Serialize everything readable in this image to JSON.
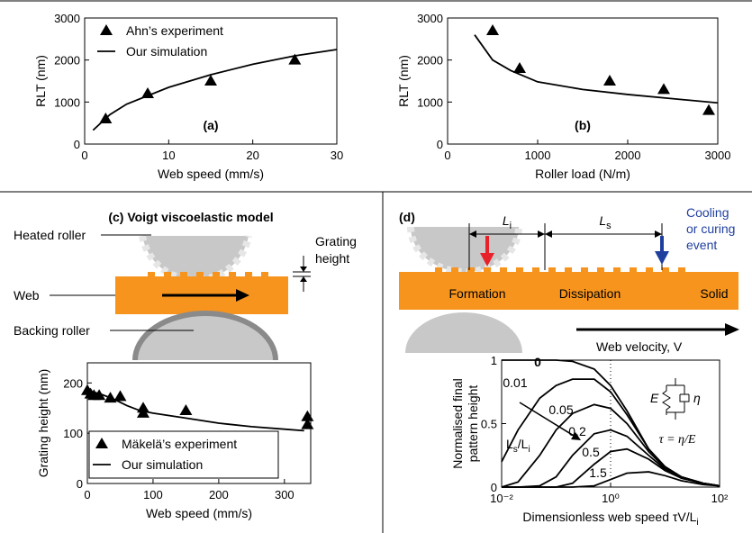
{
  "chart_data": [
    {
      "type": "line",
      "annotation": "(a)",
      "xlabel": "Web speed (mm/s)",
      "ylabel": "RLT (nm)",
      "xlim": [
        0,
        30
      ],
      "xticks": [
        0,
        10,
        20,
        30
      ],
      "ylim": [
        0,
        3000
      ],
      "yticks": [
        0,
        1000,
        2000,
        3000
      ],
      "legend": "upper left",
      "series": [
        {
          "name": "Ahn’s experiment",
          "color": "#000000",
          "marker": "triangle",
          "x": [
            2.5,
            7.5,
            15,
            25
          ],
          "values": [
            600,
            1200,
            1500,
            2000
          ]
        },
        {
          "name": "Our simulation",
          "color": "#000000",
          "marker": "none",
          "x": [
            1,
            3,
            5,
            10,
            15,
            20,
            25,
            30
          ],
          "values": [
            330,
            700,
            950,
            1350,
            1650,
            1900,
            2100,
            2250
          ]
        }
      ]
    },
    {
      "type": "line",
      "annotation": "(b)",
      "xlabel": "Roller load (N/m)",
      "ylabel": "RLT (nm)",
      "xlim": [
        0,
        3000
      ],
      "xticks": [
        0,
        1000,
        2000,
        3000
      ],
      "ylim": [
        0,
        3000
      ],
      "yticks": [
        0,
        1000,
        2000,
        3000
      ],
      "series": [
        {
          "color": "#000000",
          "marker": "triangle",
          "x": [
            500,
            800,
            1800,
            2400,
            2900
          ],
          "values": [
            2700,
            1800,
            1500,
            1300,
            800
          ]
        },
        {
          "color": "#000000",
          "marker": "none",
          "x": [
            300,
            500,
            700,
            1000,
            1500,
            2000,
            2500,
            3000
          ],
          "values": [
            2600,
            2000,
            1750,
            1480,
            1300,
            1180,
            1080,
            980
          ]
        }
      ]
    },
    {
      "type": "line",
      "xlabel": "Web speed (mm/s)",
      "ylabel": "Grating height (nm)",
      "xlim": [
        0,
        340
      ],
      "xticks": [
        0,
        100,
        200,
        300
      ],
      "ylim": [
        0,
        240
      ],
      "yticks": [
        0,
        100,
        200
      ],
      "legend": "lower left",
      "series": [
        {
          "name": "Mäkelä’s experiment",
          "color": "#000000",
          "marker": "triangle",
          "x": [
            0,
            5,
            10,
            18,
            35,
            50,
            85,
            85,
            150,
            335,
            335
          ],
          "values": [
            185,
            178,
            175,
            175,
            170,
            173,
            150,
            140,
            145,
            133,
            117
          ]
        },
        {
          "name": "Our simulation",
          "color": "#000000",
          "marker": "none",
          "x": [
            0,
            20,
            40,
            60,
            80,
            100,
            150,
            200,
            250,
            300,
            330
          ],
          "values": [
            185,
            178,
            168,
            155,
            145,
            140,
            130,
            120,
            113,
            108,
            105
          ]
        }
      ]
    },
    {
      "type": "line",
      "xscale": "log",
      "xlabel": [
        "Dimensionless web speed τV/L",
        "i"
      ],
      "ylabel": [
        "Normalised final",
        "pattern height"
      ],
      "xlim": [
        0.01,
        100
      ],
      "xticks": [
        {
          "value": 0.01,
          "label": "10⁻²"
        },
        {
          "value": 1,
          "label": "10⁰"
        },
        {
          "value": 100,
          "label": "10²"
        }
      ],
      "ylim": [
        0,
        1
      ],
      "yticks": [
        0,
        0.5,
        1
      ],
      "reference_x": 1,
      "ratio_label": [
        "L",
        "s",
        "/L",
        "i"
      ],
      "inset": {
        "spring": "E",
        "damper": "η",
        "relation": "τ = η/E"
      },
      "x": [
        0.01,
        0.02,
        0.05,
        0.1,
        0.2,
        0.5,
        1,
        2,
        5,
        10,
        20,
        50,
        100
      ],
      "series": [
        {
          "name": "0",
          "color": "#000000",
          "values": [
            1,
            1,
            1,
            1,
            0.99,
            0.93,
            0.8,
            0.6,
            0.3,
            0.16,
            0.08,
            0.03,
            0.01
          ]
        },
        {
          "name": "0.01",
          "color": "#000000",
          "values": [
            0.2,
            0.45,
            0.7,
            0.8,
            0.85,
            0.85,
            0.75,
            0.57,
            0.3,
            0.16,
            0.08,
            0.03,
            0.01
          ]
        },
        {
          "name": "0.05",
          "color": "#000000",
          "values": [
            0,
            0.04,
            0.25,
            0.45,
            0.58,
            0.65,
            0.62,
            0.5,
            0.28,
            0.15,
            0.08,
            0.03,
            0.01
          ]
        },
        {
          "name": "0.2",
          "color": "#000000",
          "values": [
            0,
            0,
            0.01,
            0.08,
            0.25,
            0.42,
            0.45,
            0.4,
            0.25,
            0.14,
            0.07,
            0.03,
            0.01
          ]
        },
        {
          "name": "0.5",
          "color": "#000000",
          "values": [
            0,
            0,
            0,
            0,
            0.03,
            0.18,
            0.28,
            0.3,
            0.22,
            0.13,
            0.07,
            0.03,
            0.01
          ]
        },
        {
          "name": "1.5",
          "color": "#000000",
          "values": [
            0,
            0,
            0,
            0,
            0,
            0.01,
            0.06,
            0.11,
            0.12,
            0.09,
            0.05,
            0.02,
            0.01
          ]
        }
      ]
    }
  ],
  "diagrams": {
    "c": {
      "title": "(c) Voigt viscoelastic model",
      "heated_roller": "Heated roller",
      "web": "Web",
      "backing_roller": "Backing roller",
      "grating_height": [
        "Grating",
        "height"
      ]
    },
    "d": {
      "label": "(d)",
      "li": [
        "L",
        "i"
      ],
      "ls": [
        "L",
        "s"
      ],
      "event": [
        "Cooling",
        "or curing",
        "event"
      ],
      "zones": [
        "Formation",
        "Dissipation",
        "Solid"
      ],
      "velocity": "Web velocity, V"
    }
  }
}
